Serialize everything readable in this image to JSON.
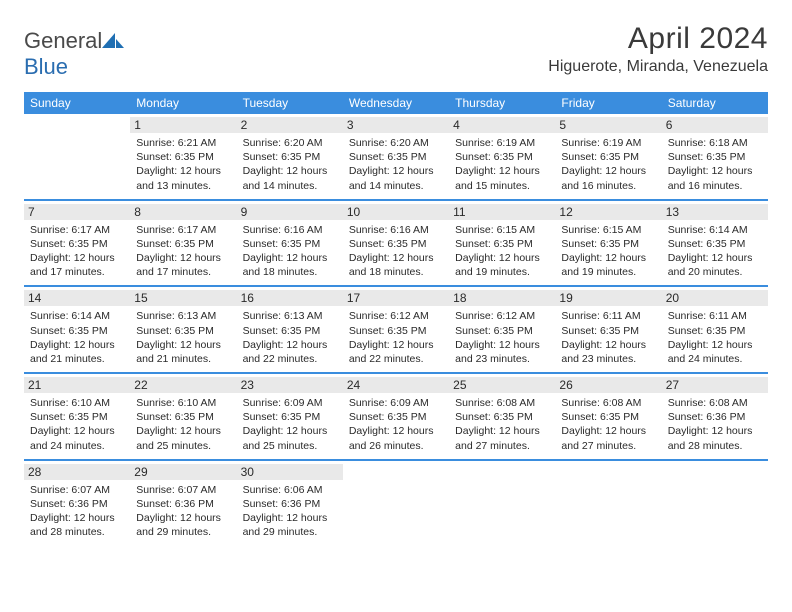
{
  "brand": {
    "part1": "General",
    "part2": "Blue"
  },
  "title": "April 2024",
  "location": "Higuerote, Miranda, Venezuela",
  "colors": {
    "header_bg": "#3a8dde",
    "header_text": "#ffffff",
    "daynum_bg": "#e9e9e9",
    "border": "#3a8dde",
    "brand_gray": "#4a4a4a",
    "brand_blue": "#2a6db0",
    "text": "#2a2a2a",
    "page_bg": "#ffffff"
  },
  "day_headers": [
    "Sunday",
    "Monday",
    "Tuesday",
    "Wednesday",
    "Thursday",
    "Friday",
    "Saturday"
  ],
  "weeks": [
    [
      {
        "n": "",
        "sr": "",
        "ss": "",
        "dl": ""
      },
      {
        "n": "1",
        "sr": "Sunrise: 6:21 AM",
        "ss": "Sunset: 6:35 PM",
        "dl": "Daylight: 12 hours and 13 minutes."
      },
      {
        "n": "2",
        "sr": "Sunrise: 6:20 AM",
        "ss": "Sunset: 6:35 PM",
        "dl": "Daylight: 12 hours and 14 minutes."
      },
      {
        "n": "3",
        "sr": "Sunrise: 6:20 AM",
        "ss": "Sunset: 6:35 PM",
        "dl": "Daylight: 12 hours and 14 minutes."
      },
      {
        "n": "4",
        "sr": "Sunrise: 6:19 AM",
        "ss": "Sunset: 6:35 PM",
        "dl": "Daylight: 12 hours and 15 minutes."
      },
      {
        "n": "5",
        "sr": "Sunrise: 6:19 AM",
        "ss": "Sunset: 6:35 PM",
        "dl": "Daylight: 12 hours and 16 minutes."
      },
      {
        "n": "6",
        "sr": "Sunrise: 6:18 AM",
        "ss": "Sunset: 6:35 PM",
        "dl": "Daylight: 12 hours and 16 minutes."
      }
    ],
    [
      {
        "n": "7",
        "sr": "Sunrise: 6:17 AM",
        "ss": "Sunset: 6:35 PM",
        "dl": "Daylight: 12 hours and 17 minutes."
      },
      {
        "n": "8",
        "sr": "Sunrise: 6:17 AM",
        "ss": "Sunset: 6:35 PM",
        "dl": "Daylight: 12 hours and 17 minutes."
      },
      {
        "n": "9",
        "sr": "Sunrise: 6:16 AM",
        "ss": "Sunset: 6:35 PM",
        "dl": "Daylight: 12 hours and 18 minutes."
      },
      {
        "n": "10",
        "sr": "Sunrise: 6:16 AM",
        "ss": "Sunset: 6:35 PM",
        "dl": "Daylight: 12 hours and 18 minutes."
      },
      {
        "n": "11",
        "sr": "Sunrise: 6:15 AM",
        "ss": "Sunset: 6:35 PM",
        "dl": "Daylight: 12 hours and 19 minutes."
      },
      {
        "n": "12",
        "sr": "Sunrise: 6:15 AM",
        "ss": "Sunset: 6:35 PM",
        "dl": "Daylight: 12 hours and 19 minutes."
      },
      {
        "n": "13",
        "sr": "Sunrise: 6:14 AM",
        "ss": "Sunset: 6:35 PM",
        "dl": "Daylight: 12 hours and 20 minutes."
      }
    ],
    [
      {
        "n": "14",
        "sr": "Sunrise: 6:14 AM",
        "ss": "Sunset: 6:35 PM",
        "dl": "Daylight: 12 hours and 21 minutes."
      },
      {
        "n": "15",
        "sr": "Sunrise: 6:13 AM",
        "ss": "Sunset: 6:35 PM",
        "dl": "Daylight: 12 hours and 21 minutes."
      },
      {
        "n": "16",
        "sr": "Sunrise: 6:13 AM",
        "ss": "Sunset: 6:35 PM",
        "dl": "Daylight: 12 hours and 22 minutes."
      },
      {
        "n": "17",
        "sr": "Sunrise: 6:12 AM",
        "ss": "Sunset: 6:35 PM",
        "dl": "Daylight: 12 hours and 22 minutes."
      },
      {
        "n": "18",
        "sr": "Sunrise: 6:12 AM",
        "ss": "Sunset: 6:35 PM",
        "dl": "Daylight: 12 hours and 23 minutes."
      },
      {
        "n": "19",
        "sr": "Sunrise: 6:11 AM",
        "ss": "Sunset: 6:35 PM",
        "dl": "Daylight: 12 hours and 23 minutes."
      },
      {
        "n": "20",
        "sr": "Sunrise: 6:11 AM",
        "ss": "Sunset: 6:35 PM",
        "dl": "Daylight: 12 hours and 24 minutes."
      }
    ],
    [
      {
        "n": "21",
        "sr": "Sunrise: 6:10 AM",
        "ss": "Sunset: 6:35 PM",
        "dl": "Daylight: 12 hours and 24 minutes."
      },
      {
        "n": "22",
        "sr": "Sunrise: 6:10 AM",
        "ss": "Sunset: 6:35 PM",
        "dl": "Daylight: 12 hours and 25 minutes."
      },
      {
        "n": "23",
        "sr": "Sunrise: 6:09 AM",
        "ss": "Sunset: 6:35 PM",
        "dl": "Daylight: 12 hours and 25 minutes."
      },
      {
        "n": "24",
        "sr": "Sunrise: 6:09 AM",
        "ss": "Sunset: 6:35 PM",
        "dl": "Daylight: 12 hours and 26 minutes."
      },
      {
        "n": "25",
        "sr": "Sunrise: 6:08 AM",
        "ss": "Sunset: 6:35 PM",
        "dl": "Daylight: 12 hours and 27 minutes."
      },
      {
        "n": "26",
        "sr": "Sunrise: 6:08 AM",
        "ss": "Sunset: 6:35 PM",
        "dl": "Daylight: 12 hours and 27 minutes."
      },
      {
        "n": "27",
        "sr": "Sunrise: 6:08 AM",
        "ss": "Sunset: 6:36 PM",
        "dl": "Daylight: 12 hours and 28 minutes."
      }
    ],
    [
      {
        "n": "28",
        "sr": "Sunrise: 6:07 AM",
        "ss": "Sunset: 6:36 PM",
        "dl": "Daylight: 12 hours and 28 minutes."
      },
      {
        "n": "29",
        "sr": "Sunrise: 6:07 AM",
        "ss": "Sunset: 6:36 PM",
        "dl": "Daylight: 12 hours and 29 minutes."
      },
      {
        "n": "30",
        "sr": "Sunrise: 6:06 AM",
        "ss": "Sunset: 6:36 PM",
        "dl": "Daylight: 12 hours and 29 minutes."
      },
      {
        "n": "",
        "sr": "",
        "ss": "",
        "dl": ""
      },
      {
        "n": "",
        "sr": "",
        "ss": "",
        "dl": ""
      },
      {
        "n": "",
        "sr": "",
        "ss": "",
        "dl": ""
      },
      {
        "n": "",
        "sr": "",
        "ss": "",
        "dl": ""
      }
    ]
  ]
}
